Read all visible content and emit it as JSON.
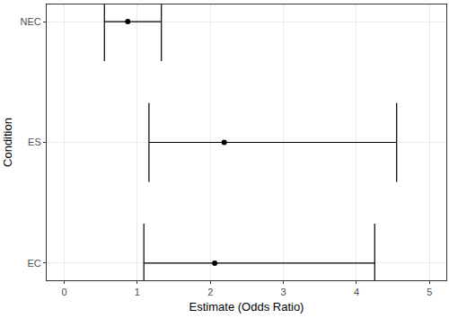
{
  "chart_data": {
    "type": "forest",
    "categories": [
      "NEC",
      "ES",
      "EC"
    ],
    "values": [
      0.87,
      2.19,
      2.06
    ],
    "ci_lower": [
      0.55,
      1.16,
      1.09
    ],
    "ci_upper": [
      1.33,
      4.55,
      4.25
    ],
    "xlabel": "Estimate (Odds Ratio)",
    "ylabel": "Condition",
    "xlim": [
      -0.24,
      5.23
    ],
    "xticks": [
      0,
      1,
      2,
      3,
      4,
      5
    ],
    "grid": true,
    "color": "#000000"
  }
}
